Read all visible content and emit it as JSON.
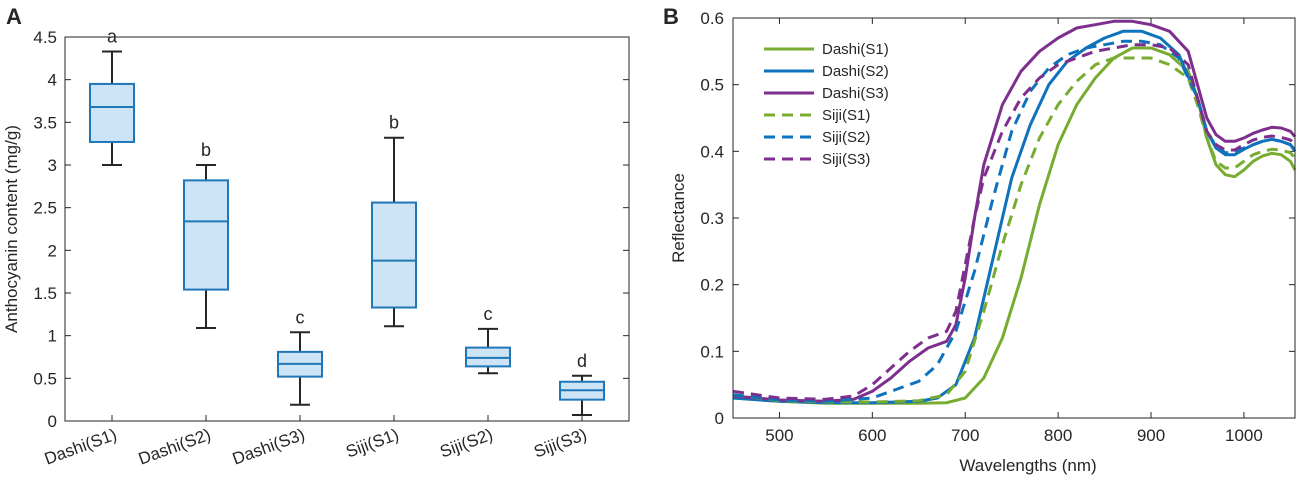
{
  "chart_data": [
    {
      "panel_label": "A",
      "type": "box",
      "title": "",
      "xlabel": "",
      "ylabel": "Anthocyanin content (mg/g)",
      "ylim": [
        0,
        4.5
      ],
      "yticks": [
        0,
        0.5,
        1,
        1.5,
        2,
        2.5,
        3,
        3.5,
        4,
        4.5
      ],
      "ytick_labels": [
        "0",
        "0.5",
        "1",
        "1.5",
        "2",
        "2.5",
        "3",
        "3.5",
        "4",
        "4.5"
      ],
      "categories": [
        "Dashi(S1)",
        "Dashi(S2)",
        "Dashi(S3)",
        "Siji(S1)",
        "Siji(S2)",
        "Siji(S3)"
      ],
      "boxes": [
        {
          "whisker_low": 3.0,
          "q1": 3.27,
          "median": 3.68,
          "q3": 3.95,
          "whisker_high": 4.33,
          "letter": "a"
        },
        {
          "whisker_low": 1.09,
          "q1": 1.54,
          "median": 2.34,
          "q3": 2.82,
          "whisker_high": 3.0,
          "letter": "b"
        },
        {
          "whisker_low": 0.19,
          "q1": 0.52,
          "median": 0.67,
          "q3": 0.81,
          "whisker_high": 1.04,
          "letter": "c"
        },
        {
          "whisker_low": 1.11,
          "q1": 1.33,
          "median": 1.88,
          "q3": 2.56,
          "whisker_high": 3.32,
          "letter": "b"
        },
        {
          "whisker_low": 0.56,
          "q1": 0.64,
          "median": 0.74,
          "q3": 0.86,
          "whisker_high": 1.08,
          "letter": "c"
        },
        {
          "whisker_low": 0.07,
          "q1": 0.25,
          "median": 0.36,
          "q3": 0.46,
          "whisker_high": 0.53,
          "letter": "d"
        }
      ],
      "colors": {
        "box_fill": "#cce4f5",
        "box_edge": "#1f77b8",
        "whisker": "#262626"
      }
    },
    {
      "panel_label": "B",
      "type": "line",
      "title": "",
      "xlabel": "Wavelengths (nm)",
      "ylabel": "Reflectance",
      "xlim": [
        450,
        1055
      ],
      "ylim": [
        0,
        0.6
      ],
      "xticks": [
        500,
        600,
        700,
        800,
        900,
        1000
      ],
      "xtick_labels": [
        "500",
        "600",
        "700",
        "800",
        "900",
        "1000"
      ],
      "yticks": [
        0,
        0.1,
        0.2,
        0.3,
        0.4,
        0.5,
        0.6
      ],
      "ytick_labels": [
        "0",
        "0.1",
        "0.2",
        "0.3",
        "0.4",
        "0.5",
        "0.6"
      ],
      "legend_position": "top-left",
      "series": [
        {
          "name": "Dashi(S1)",
          "color": "#77ac30",
          "dash": false,
          "x": [
            450,
            500,
            550,
            600,
            650,
            680,
            700,
            720,
            740,
            760,
            780,
            800,
            820,
            840,
            860,
            880,
            900,
            920,
            940,
            950,
            960,
            970,
            980,
            990,
            1000,
            1010,
            1020,
            1030,
            1040,
            1050,
            1055
          ],
          "y": [
            0.03,
            0.025,
            0.022,
            0.022,
            0.022,
            0.023,
            0.03,
            0.06,
            0.12,
            0.21,
            0.32,
            0.41,
            0.47,
            0.51,
            0.54,
            0.555,
            0.555,
            0.545,
            0.52,
            0.48,
            0.42,
            0.38,
            0.365,
            0.362,
            0.372,
            0.385,
            0.393,
            0.397,
            0.395,
            0.385,
            0.372
          ]
        },
        {
          "name": "Dashi(S2)",
          "color": "#0e72bd",
          "dash": false,
          "x": [
            450,
            500,
            550,
            600,
            650,
            670,
            690,
            710,
            730,
            750,
            770,
            790,
            810,
            830,
            850,
            870,
            890,
            910,
            930,
            950,
            960,
            970,
            980,
            990,
            1000,
            1010,
            1020,
            1030,
            1040,
            1050,
            1055
          ],
          "y": [
            0.03,
            0.025,
            0.023,
            0.023,
            0.025,
            0.03,
            0.05,
            0.12,
            0.24,
            0.36,
            0.44,
            0.5,
            0.535,
            0.555,
            0.57,
            0.58,
            0.58,
            0.57,
            0.545,
            0.48,
            0.43,
            0.405,
            0.395,
            0.395,
            0.403,
            0.41,
            0.415,
            0.418,
            0.415,
            0.41,
            0.4
          ]
        },
        {
          "name": "Dashi(S3)",
          "color": "#7e2f8e",
          "dash": false,
          "x": [
            450,
            500,
            550,
            580,
            600,
            620,
            640,
            660,
            680,
            690,
            700,
            710,
            720,
            740,
            760,
            780,
            800,
            820,
            840,
            860,
            880,
            900,
            920,
            940,
            950,
            960,
            970,
            980,
            990,
            1000,
            1010,
            1020,
            1030,
            1040,
            1050,
            1055
          ],
          "y": [
            0.033,
            0.027,
            0.025,
            0.028,
            0.04,
            0.06,
            0.085,
            0.105,
            0.115,
            0.14,
            0.21,
            0.3,
            0.38,
            0.47,
            0.52,
            0.55,
            0.57,
            0.585,
            0.59,
            0.595,
            0.595,
            0.59,
            0.58,
            0.55,
            0.5,
            0.45,
            0.425,
            0.415,
            0.415,
            0.42,
            0.427,
            0.432,
            0.436,
            0.435,
            0.43,
            0.422
          ]
        },
        {
          "name": "Siji(S1)",
          "color": "#77ac30",
          "dash": true,
          "x": [
            450,
            500,
            550,
            600,
            650,
            680,
            700,
            720,
            740,
            760,
            780,
            800,
            820,
            840,
            860,
            880,
            900,
            920,
            940,
            950,
            960,
            970,
            980,
            990,
            1000,
            1010,
            1020,
            1030,
            1040,
            1050,
            1055
          ],
          "y": [
            0.035,
            0.026,
            0.024,
            0.024,
            0.026,
            0.035,
            0.07,
            0.16,
            0.26,
            0.35,
            0.42,
            0.47,
            0.505,
            0.53,
            0.54,
            0.54,
            0.54,
            0.53,
            0.51,
            0.47,
            0.42,
            0.385,
            0.375,
            0.375,
            0.385,
            0.395,
            0.4,
            0.403,
            0.402,
            0.398,
            0.39
          ]
        },
        {
          "name": "Siji(S2)",
          "color": "#0e72bd",
          "dash": true,
          "x": [
            450,
            500,
            550,
            600,
            650,
            670,
            690,
            710,
            730,
            750,
            770,
            790,
            810,
            830,
            850,
            870,
            890,
            910,
            930,
            950,
            960,
            970,
            980,
            990,
            1000,
            1010,
            1020,
            1030,
            1040,
            1050,
            1055
          ],
          "y": [
            0.035,
            0.027,
            0.025,
            0.03,
            0.055,
            0.08,
            0.13,
            0.22,
            0.33,
            0.43,
            0.49,
            0.525,
            0.545,
            0.555,
            0.56,
            0.565,
            0.565,
            0.56,
            0.54,
            0.48,
            0.43,
            0.408,
            0.398,
            0.398,
            0.405,
            0.41,
            0.415,
            0.418,
            0.415,
            0.41,
            0.402
          ]
        },
        {
          "name": "Siji(S3)",
          "color": "#7e2f8e",
          "dash": true,
          "x": [
            450,
            500,
            550,
            580,
            600,
            620,
            640,
            660,
            680,
            690,
            700,
            710,
            720,
            740,
            760,
            780,
            800,
            820,
            840,
            860,
            880,
            900,
            920,
            940,
            950,
            960,
            970,
            980,
            990,
            1000,
            1010,
            1020,
            1030,
            1040,
            1050,
            1055
          ],
          "y": [
            0.04,
            0.03,
            0.028,
            0.033,
            0.05,
            0.075,
            0.1,
            0.12,
            0.13,
            0.16,
            0.23,
            0.3,
            0.36,
            0.43,
            0.48,
            0.51,
            0.53,
            0.54,
            0.55,
            0.555,
            0.56,
            0.56,
            0.555,
            0.53,
            0.48,
            0.43,
            0.41,
            0.402,
            0.402,
            0.41,
            0.417,
            0.421,
            0.423,
            0.421,
            0.417,
            0.41
          ]
        }
      ]
    }
  ]
}
